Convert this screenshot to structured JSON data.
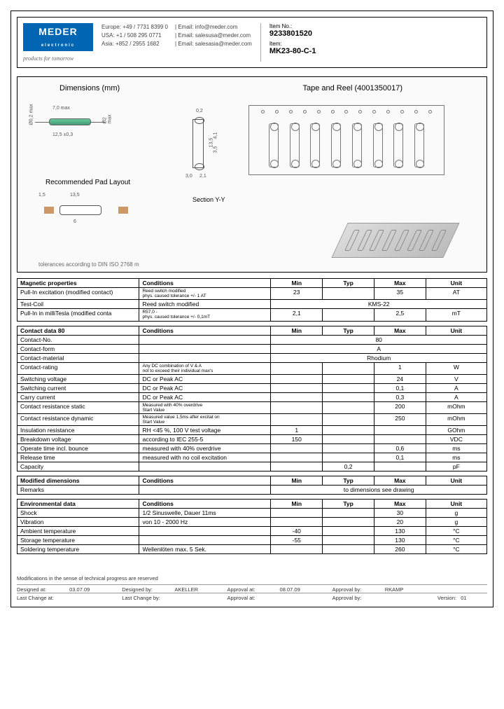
{
  "header": {
    "logo_text": "MEDER",
    "logo_sub": "electronic",
    "tagline": "products for tomorrow",
    "contacts": {
      "europe_label": "Europe:",
      "europe_phone": "+49 / 7731 8399 0",
      "usa_label": "USA:",
      "usa_phone": "+1 / 508 295 0771",
      "asia_label": "Asia:",
      "asia_phone": "+852 / 2955 1682",
      "email1_label": "Email:",
      "email1": "info@meder.com",
      "email2_label": "Email:",
      "email2": "salesusa@meder.com",
      "email3_label": "Email:",
      "email3": "salesasia@meder.com"
    },
    "item_no_label": "Item No.:",
    "item_no": "9233801520",
    "item_label": "Item:",
    "item": "MK23-80-C-1"
  },
  "diagram": {
    "dimensions_title": "Dimensions (mm)",
    "tape_title": "Tape and Reel (4001350017)",
    "pad_title": "Recommended Pad Layout",
    "section_label": "Section Y-Y",
    "tolerance_note": "tolerances according to DIN ISO 2768 m",
    "dim_70": "7,0 max",
    "dim_125": "12,5 ±0,3",
    "dim_02": "0,2",
    "dim_135": "13,5",
    "dim_15": "1,5",
    "dim_6": "6",
    "dim_35": "3,5",
    "dim_41": "4,1",
    "dim_21": "2,1",
    "dim_30": "3,0",
    "dap_02": "Ø0,2 max",
    "dap_2": "Ø2 max"
  },
  "tables": {
    "magnetic": {
      "title": "Magnetic properties",
      "h_cond": "Conditions",
      "h_min": "Min",
      "h_typ": "Typ",
      "h_max": "Max",
      "h_unit": "Unit",
      "rows": [
        {
          "p": "Pull-In excitation (modified contact)",
          "c": "Reed switch modified\nphys. caused tolerance +/- 1 AT",
          "min": "23",
          "typ": "",
          "max": "35",
          "u": "AT"
        },
        {
          "p": "Test-Coil",
          "c": "Reed switch modified",
          "span": "KMS-22"
        },
        {
          "p": "Pull-In in milliTesla (modified conta",
          "c": "R57,0 -\nphys. caused tolerance +/- 0,1mT",
          "min": "2,1",
          "typ": "",
          "max": "2,5",
          "u": "mT"
        }
      ]
    },
    "contact": {
      "title": "Contact data  80",
      "h_cond": "Conditions",
      "h_min": "Min",
      "h_typ": "Typ",
      "h_max": "Max",
      "h_unit": "Unit",
      "rows": [
        {
          "p": "Contact-No.",
          "c": "",
          "span": "80"
        },
        {
          "p": "Contact-form",
          "c": "",
          "span": "A"
        },
        {
          "p": "Contact-material",
          "c": "",
          "span": "Rhodium"
        },
        {
          "p": "Contact-rating",
          "c": "Any DC combination of V & A\nnot to exceed their individual max's",
          "min": "",
          "typ": "",
          "max": "1",
          "u": "W"
        },
        {
          "p": "Switching voltage",
          "c": "DC or Peak AC",
          "min": "",
          "typ": "",
          "max": "24",
          "u": "V"
        },
        {
          "p": "Switching current",
          "c": "DC or Peak AC",
          "min": "",
          "typ": "",
          "max": "0,1",
          "u": "A"
        },
        {
          "p": "Carry current",
          "c": "DC or Peak AC",
          "min": "",
          "typ": "",
          "max": "0,3",
          "u": "A"
        },
        {
          "p": "Contact resistance static",
          "c": "Measured with 40% overdrive\nStart Value",
          "min": "",
          "typ": "",
          "max": "200",
          "u": "mOhm"
        },
        {
          "p": "Contact resistance dynamic",
          "c": "Measured value 1,5ms after excitat on\nStart Value",
          "min": "",
          "typ": "",
          "max": "250",
          "u": "mOhm"
        },
        {
          "p": "Insulation resistance",
          "c": "RH <45 %, 100 V test voltage",
          "min": "1",
          "typ": "",
          "max": "",
          "u": "GOhm"
        },
        {
          "p": "Breakdown voltage",
          "c": "according to IEC 255-5",
          "min": "150",
          "typ": "",
          "max": "",
          "u": "VDC"
        },
        {
          "p": "Operate time incl. bounce",
          "c": "measured with 40% overdrive",
          "min": "",
          "typ": "",
          "max": "0,6",
          "u": "ms"
        },
        {
          "p": "Release time",
          "c": "measured with no coil excitation",
          "min": "",
          "typ": "",
          "max": "0,1",
          "u": "ms"
        },
        {
          "p": "Capacity",
          "c": "",
          "min": "",
          "typ": "0,2",
          "max": "",
          "u": "pF"
        }
      ]
    },
    "modified": {
      "title": "Modified dimensions",
      "h_cond": "Conditions",
      "h_min": "Min",
      "h_typ": "Typ",
      "h_max": "Max",
      "h_unit": "Unit",
      "rows": [
        {
          "p": "Remarks",
          "c": "",
          "span": "to dimensions see drawing"
        }
      ]
    },
    "environmental": {
      "title": "Environmental data",
      "h_cond": "Conditions",
      "h_min": "Min",
      "h_typ": "Typ",
      "h_max": "Max",
      "h_unit": "Unit",
      "rows": [
        {
          "p": "Shock",
          "c": "1/2 Sinuswelle, Dauer 11ms",
          "min": "",
          "typ": "",
          "max": "30",
          "u": "g"
        },
        {
          "p": "Vibration",
          "c": "von 10 - 2000 Hz",
          "min": "",
          "typ": "",
          "max": "20",
          "u": "g"
        },
        {
          "p": "Ambient temperature",
          "c": "",
          "min": "-40",
          "typ": "",
          "max": "130",
          "u": "°C"
        },
        {
          "p": "Storage temperature",
          "c": "",
          "min": "-55",
          "typ": "",
          "max": "130",
          "u": "°C"
        },
        {
          "p": "Soldering temperature",
          "c": "Wellenlöten max. 5 Sek.",
          "min": "",
          "typ": "",
          "max": "260",
          "u": "°C"
        }
      ]
    }
  },
  "footer": {
    "note": "Modifications in the sense of technical progress are reserved",
    "designed_at_l": "Designed at:",
    "designed_at": "03.07.09",
    "designed_by_l": "Designed by:",
    "designed_by": "AKELLER",
    "approval_at_l": "Approval at:",
    "approval_at": "08.07.09",
    "approval_by_l": "Approval by:",
    "approval_by": "RKAMP",
    "last_change_at_l": "Last Change at:",
    "last_change_at": "",
    "last_change_by_l": "Last Change by:",
    "last_change_by": "",
    "approval2_at_l": "Approval at:",
    "approval2_at": "",
    "approval2_by_l": "Approval by:",
    "approval2_by": "",
    "version_l": "Version:",
    "version": "01"
  }
}
